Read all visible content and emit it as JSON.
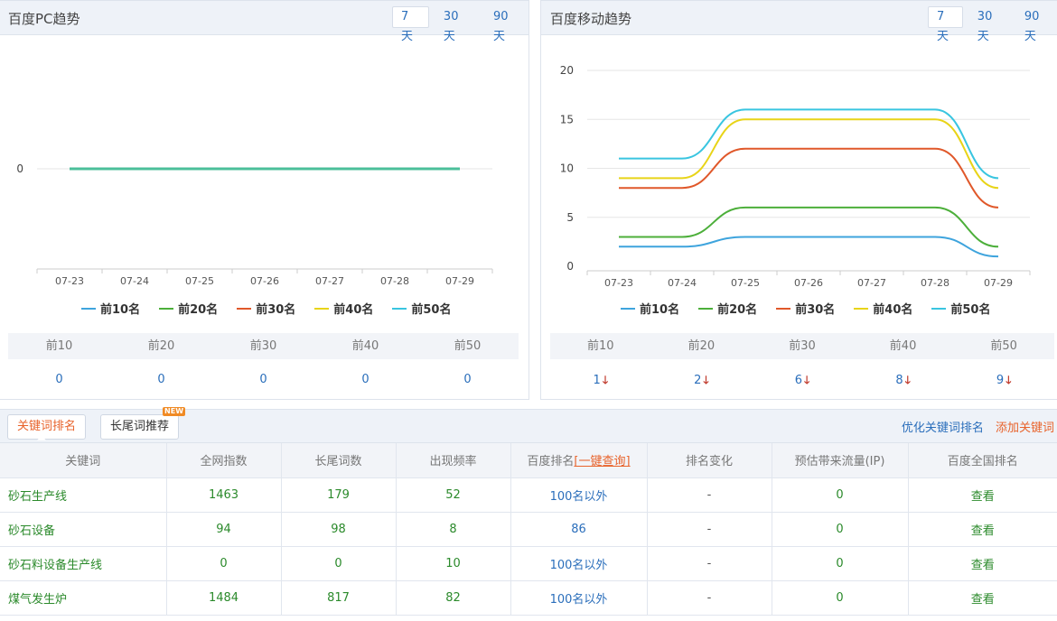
{
  "pc_panel": {
    "title": "百度PC趋势",
    "ranges": [
      "7天",
      "30天",
      "90天"
    ],
    "active_range": 0,
    "stat_headers": [
      "前10",
      "前20",
      "前30",
      "前40",
      "前50"
    ],
    "stat_values": [
      "0",
      "0",
      "0",
      "0",
      "0"
    ]
  },
  "mobile_panel": {
    "title": "百度移动趋势",
    "ranges": [
      "7天",
      "30天",
      "90天"
    ],
    "active_range": 0,
    "stat_headers": [
      "前10",
      "前20",
      "前30",
      "前40",
      "前50"
    ],
    "stat_values": [
      "1",
      "2",
      "6",
      "8",
      "9"
    ],
    "stat_trend": "down-arrow-icon"
  },
  "legend": [
    "前10名",
    "前20名",
    "前30名",
    "前40名",
    "前50名"
  ],
  "colors": {
    "top10": "#3ea4dd",
    "top20": "#4caf3a",
    "top30": "#e0582a",
    "top40": "#e8d418",
    "top50": "#39c5e0",
    "accent": "#2a6ebb",
    "orange": "#e8632b"
  },
  "chart_data": [
    {
      "type": "line",
      "title": "百度PC趋势",
      "categories": [
        "07-23",
        "07-24",
        "07-25",
        "07-26",
        "07-27",
        "07-28",
        "07-29"
      ],
      "y_ticks": [
        "0"
      ],
      "grid": true,
      "legend_position": "bottom",
      "series": [
        {
          "name": "前10名",
          "values": [
            0,
            0,
            0,
            0,
            0,
            0,
            0
          ]
        },
        {
          "name": "前20名",
          "values": [
            0,
            0,
            0,
            0,
            0,
            0,
            0
          ]
        },
        {
          "name": "前30名",
          "values": [
            0,
            0,
            0,
            0,
            0,
            0,
            0
          ]
        },
        {
          "name": "前40名",
          "values": [
            0,
            0,
            0,
            0,
            0,
            0,
            0
          ]
        },
        {
          "name": "前50名",
          "values": [
            0,
            0,
            0,
            0,
            0,
            0,
            0
          ]
        }
      ]
    },
    {
      "type": "line",
      "title": "百度移动趋势",
      "categories": [
        "07-23",
        "07-24",
        "07-25",
        "07-26",
        "07-27",
        "07-28",
        "07-29"
      ],
      "y_ticks": [
        "0",
        "5",
        "10",
        "15",
        "20"
      ],
      "ylim": [
        0,
        20
      ],
      "grid": true,
      "legend_position": "bottom",
      "series": [
        {
          "name": "前10名",
          "values": [
            2,
            2,
            3,
            3,
            3,
            3,
            1
          ]
        },
        {
          "name": "前20名",
          "values": [
            3,
            3,
            6,
            6,
            6,
            6,
            2
          ]
        },
        {
          "name": "前30名",
          "values": [
            8,
            8,
            12,
            12,
            12,
            12,
            6
          ]
        },
        {
          "name": "前40名",
          "values": [
            9,
            9,
            15,
            15,
            15,
            15,
            8
          ]
        },
        {
          "name": "前50名",
          "values": [
            11,
            11,
            16,
            16,
            16,
            16,
            9
          ]
        }
      ]
    }
  ],
  "tabs": {
    "keyword_rank": "关键词排名",
    "long_tail": "长尾词推荐",
    "new_badge": "NEW",
    "optimize_link": "优化关键词排名",
    "add_link": "添加关键词"
  },
  "table": {
    "headers": {
      "keyword": "关键词",
      "index": "全网指数",
      "long_tail": "长尾词数",
      "frequency": "出现频率",
      "baidu_rank": "百度排名",
      "query_link": "[一键查询]",
      "change": "排名变化",
      "traffic": "预估带来流量(IP)",
      "national": "百度全国排名"
    },
    "rows": [
      {
        "keyword": "砂石生产线",
        "index": "1463",
        "long_tail": "179",
        "frequency": "52",
        "rank": "100名以外",
        "change": "-",
        "traffic": "0",
        "view": "查看"
      },
      {
        "keyword": "砂石设备",
        "index": "94",
        "long_tail": "98",
        "frequency": "8",
        "rank": "86",
        "change": "-",
        "traffic": "0",
        "view": "查看"
      },
      {
        "keyword": "砂石料设备生产线",
        "index": "0",
        "long_tail": "0",
        "frequency": "10",
        "rank": "100名以外",
        "change": "-",
        "traffic": "0",
        "view": "查看"
      },
      {
        "keyword": "煤气发生炉",
        "index": "1484",
        "long_tail": "817",
        "frequency": "82",
        "rank": "100名以外",
        "change": "-",
        "traffic": "0",
        "view": "查看"
      }
    ]
  }
}
